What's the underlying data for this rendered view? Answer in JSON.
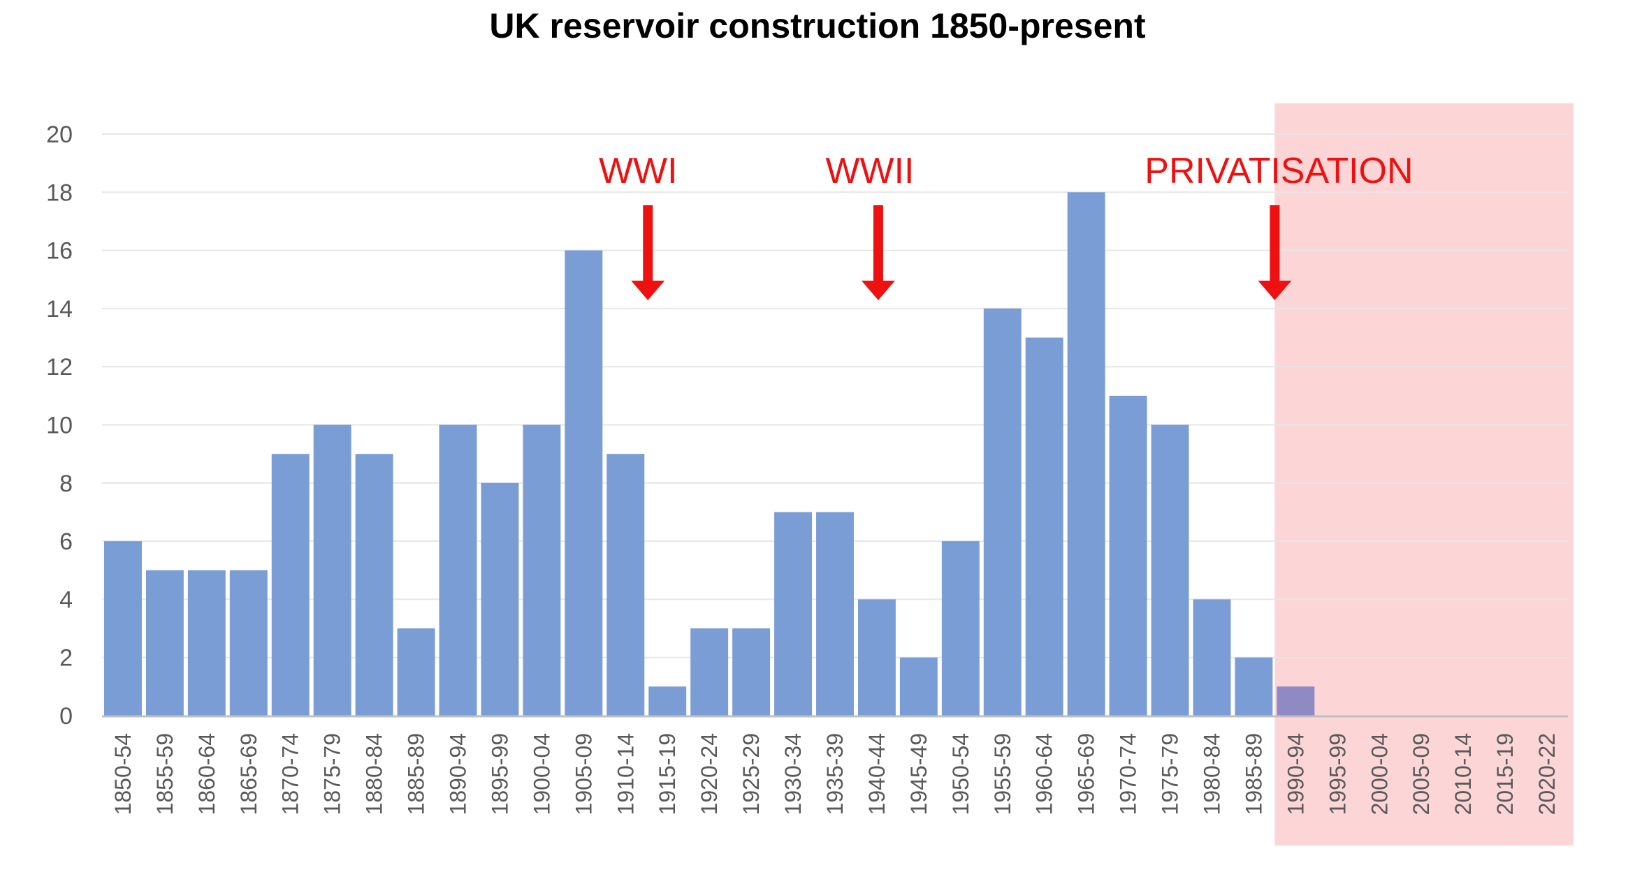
{
  "chart_data": {
    "type": "bar",
    "title": "UK reservoir construction 1850-present",
    "xlabel": "",
    "ylabel": "",
    "ylim": [
      0,
      20
    ],
    "yticks": [
      0,
      2,
      4,
      6,
      8,
      10,
      12,
      14,
      16,
      18,
      20
    ],
    "grid": true,
    "categories": [
      "1850-54",
      "1855-59",
      "1860-64",
      "1865-69",
      "1870-74",
      "1875-79",
      "1880-84",
      "1885-89",
      "1890-94",
      "1895-99",
      "1900-04",
      "1905-09",
      "1910-14",
      "1915-19",
      "1920-24",
      "1925-29",
      "1930-34",
      "1935-39",
      "1940-44",
      "1945-49",
      "1950-54",
      "1955-59",
      "1960-64",
      "1965-69",
      "1970-74",
      "1975-79",
      "1980-84",
      "1985-89",
      "1990-94",
      "1995-99",
      "2000-04",
      "2005-09",
      "2010-14",
      "2015-19",
      "2020-22"
    ],
    "values": [
      6,
      5,
      5,
      5,
      9,
      10,
      9,
      3,
      10,
      8,
      10,
      16,
      9,
      1,
      3,
      3,
      7,
      7,
      4,
      2,
      6,
      14,
      13,
      18,
      11,
      10,
      4,
      2,
      1,
      0,
      0,
      0,
      0,
      0,
      0
    ],
    "bar_color": "#7b9dd5",
    "shaded_region": {
      "from_category": "1990-94",
      "to_category": "2020-22",
      "color": "#fcd5d6"
    },
    "annotations": [
      {
        "text": "WWI",
        "category": "1915-19",
        "color": "#ee1111"
      },
      {
        "text": "WWII",
        "category": "1940-44",
        "color": "#ee1111"
      },
      {
        "text": "PRIVATISATION",
        "category": "1990-94",
        "color": "#ee1111"
      }
    ]
  }
}
